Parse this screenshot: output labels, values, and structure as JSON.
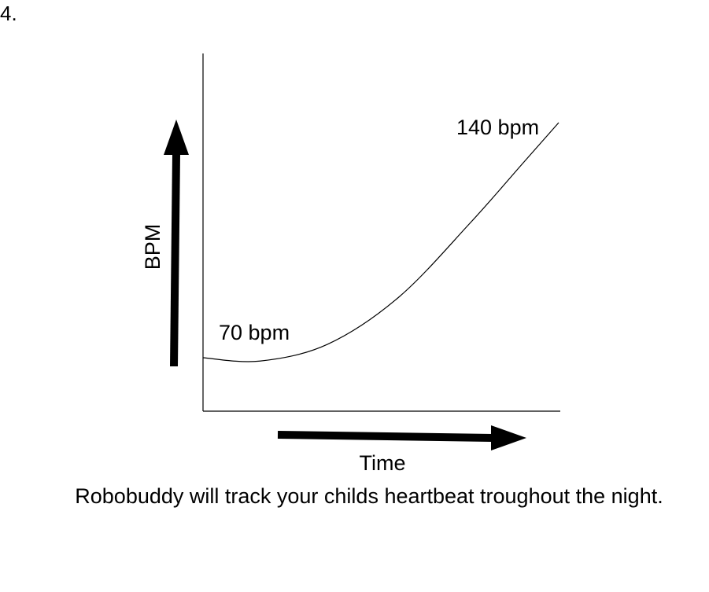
{
  "page_number": "4.",
  "caption": "Robobuddy will track your childs heartbeat troughout the night.",
  "chart_data": {
    "type": "line",
    "ylabel": "BPM",
    "xlabel": "Time",
    "annotations": {
      "start_label": "70 bpm",
      "end_label": "140 bpm"
    },
    "series": [
      {
        "points": [
          {
            "x": 0,
            "y": 70
          },
          {
            "x": 0.16,
            "y": 69
          },
          {
            "x": 0.35,
            "y": 74
          },
          {
            "x": 0.55,
            "y": 88
          },
          {
            "x": 0.75,
            "y": 110
          },
          {
            "x": 0.9,
            "y": 128
          },
          {
            "x": 1,
            "y": 140
          }
        ]
      }
    ],
    "grid": false,
    "line_color": "#000000"
  }
}
